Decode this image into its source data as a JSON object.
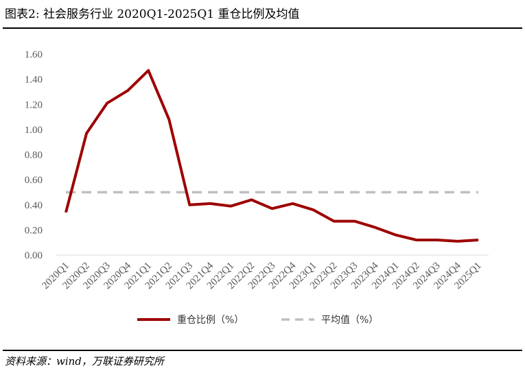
{
  "header": {
    "title": "图表2:  社会服务行业 2020Q1-2025Q1 重仓比例及均值"
  },
  "footer": {
    "source": "资料来源：wind，万联证券研究所"
  },
  "chart_data": {
    "type": "line",
    "categories": [
      "2020Q1",
      "2020Q2",
      "2020Q3",
      "2020Q4",
      "2021Q1",
      "2021Q2",
      "2021Q3",
      "2021Q4",
      "2022Q1",
      "2022Q2",
      "2022Q3",
      "2022Q4",
      "2023Q1",
      "2023Q2",
      "2023Q3",
      "2023Q4",
      "2024Q1",
      "2024Q2",
      "2024Q3",
      "2024Q4",
      "2025Q1"
    ],
    "series": [
      {
        "name": "重仓比例（%）",
        "color": "#9e0000",
        "style": "solid",
        "values": [
          0.34,
          0.97,
          1.21,
          1.31,
          1.47,
          1.08,
          0.4,
          0.41,
          0.39,
          0.44,
          0.37,
          0.41,
          0.36,
          0.27,
          0.27,
          0.22,
          0.16,
          0.12,
          0.12,
          0.11,
          0.12
        ]
      },
      {
        "name": "平均值（%）",
        "color": "#bfbfbf",
        "style": "dashed",
        "values": [
          0.5,
          0.5,
          0.5,
          0.5,
          0.5,
          0.5,
          0.5,
          0.5,
          0.5,
          0.5,
          0.5,
          0.5,
          0.5,
          0.5,
          0.5,
          0.5,
          0.5,
          0.5,
          0.5,
          0.5,
          0.5
        ]
      }
    ],
    "y_ticks": [
      "0.00",
      "0.20",
      "0.40",
      "0.60",
      "0.80",
      "1.00",
      "1.20",
      "1.40",
      "1.60"
    ],
    "ylim": [
      0,
      1.6
    ],
    "grid": false,
    "legend_position": "bottom"
  }
}
